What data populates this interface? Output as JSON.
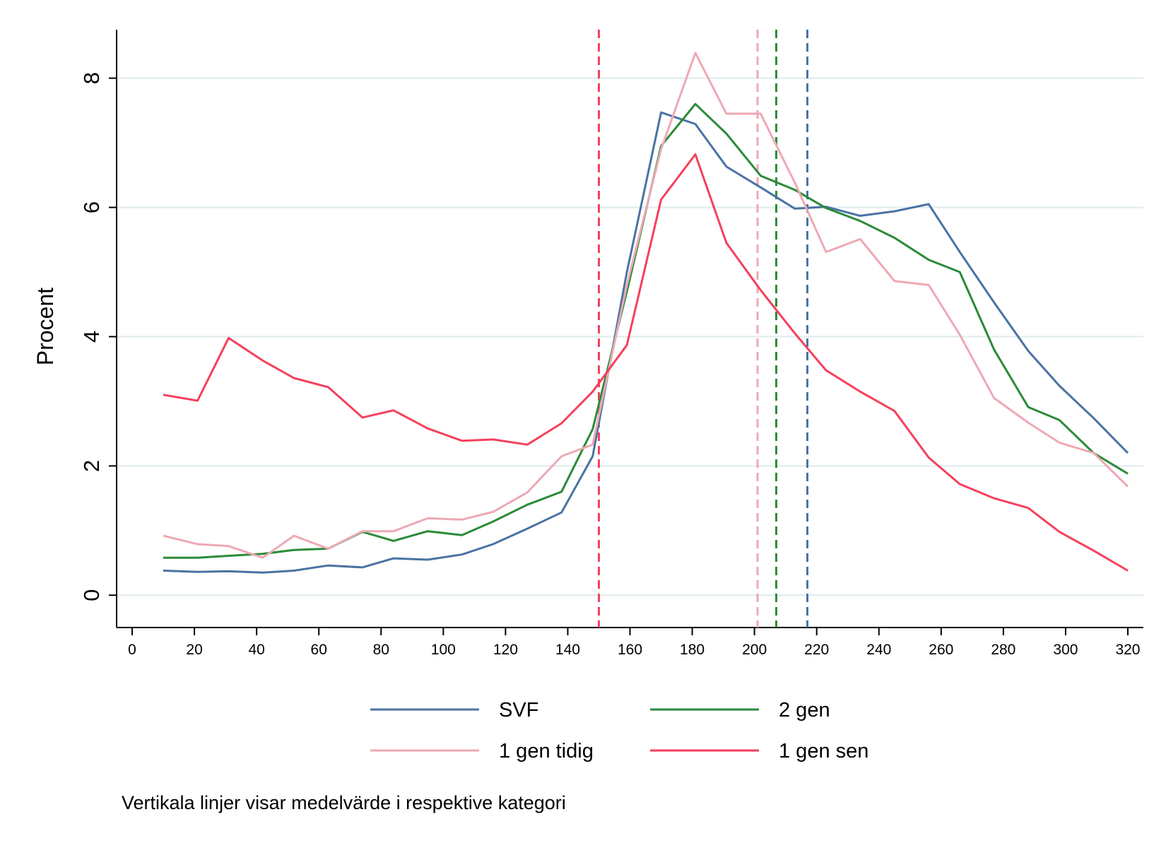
{
  "chart_data": {
    "type": "line",
    "ylabel": "Procent",
    "xlabel": "",
    "xlim": [
      -5,
      325
    ],
    "ylim": [
      -0.5,
      8.75
    ],
    "x_ticks": [
      0,
      20,
      40,
      60,
      80,
      100,
      120,
      140,
      160,
      180,
      200,
      220,
      240,
      260,
      280,
      300,
      320
    ],
    "x_tick_labels": [
      "0",
      "20",
      "40",
      "60",
      "80",
      "100",
      "120",
      "140",
      "160",
      "180",
      "200",
      "220",
      "240",
      "260",
      "280",
      "300",
      "320"
    ],
    "y_ticks": [
      0,
      2,
      4,
      6,
      8
    ],
    "y_tick_labels": [
      "0",
      "2",
      "4",
      "6",
      "8"
    ],
    "grid": "horizontal",
    "x": [
      10,
      21,
      31,
      42,
      52,
      63,
      74,
      84,
      95,
      106,
      116,
      127,
      138,
      148,
      159,
      170,
      181,
      191,
      202,
      213,
      223,
      234,
      245,
      256,
      266,
      277,
      288,
      298,
      309,
      320
    ],
    "series": [
      {
        "name": "SVF",
        "color": "#4a73a3",
        "values": [
          0.38,
          0.36,
          0.37,
          0.35,
          0.38,
          0.46,
          0.43,
          0.57,
          0.55,
          0.63,
          0.79,
          1.03,
          1.28,
          2.15,
          5.0,
          7.47,
          7.29,
          6.63,
          6.31,
          5.98,
          6.01,
          5.87,
          5.94,
          6.05,
          5.31,
          4.53,
          3.78,
          3.24,
          2.74,
          2.2
        ]
      },
      {
        "name": "2 gen",
        "color": "#2b8b38",
        "values": [
          0.58,
          0.58,
          0.61,
          0.64,
          0.7,
          0.72,
          0.98,
          0.84,
          0.99,
          0.93,
          1.14,
          1.4,
          1.6,
          2.57,
          4.7,
          6.95,
          7.6,
          7.14,
          6.49,
          6.27,
          5.99,
          5.79,
          5.53,
          5.19,
          5.0,
          3.8,
          2.91,
          2.71,
          2.2,
          1.88
        ]
      },
      {
        "name": "1 gen tidig",
        "color": "#eda9b4",
        "values": [
          0.92,
          0.79,
          0.76,
          0.58,
          0.92,
          0.72,
          0.99,
          0.99,
          1.19,
          1.17,
          1.29,
          1.59,
          2.15,
          2.33,
          4.8,
          6.9,
          8.39,
          7.45,
          7.45,
          6.38,
          5.31,
          5.51,
          4.86,
          4.8,
          4.03,
          3.05,
          2.67,
          2.36,
          2.2,
          1.68
        ]
      },
      {
        "name": "1 gen sen",
        "color": "#f5405c",
        "values": [
          3.1,
          3.01,
          3.98,
          3.63,
          3.36,
          3.22,
          2.75,
          2.86,
          2.58,
          2.39,
          2.41,
          2.33,
          2.66,
          3.15,
          3.87,
          6.12,
          6.82,
          5.45,
          4.72,
          4.05,
          3.48,
          3.15,
          2.85,
          2.13,
          1.72,
          1.5,
          1.35,
          0.98,
          0.69,
          0.38
        ]
      }
    ],
    "mean_lines": [
      {
        "name": "SVF",
        "color": "#4a73a3",
        "x": 217
      },
      {
        "name": "2 gen",
        "color": "#2b8b38",
        "x": 207
      },
      {
        "name": "1 gen tidig",
        "color": "#eda9b4",
        "x": 201
      },
      {
        "name": "1 gen sen",
        "color": "#f5405c",
        "x": 150
      }
    ],
    "legend": {
      "placement": "bottom",
      "items": [
        {
          "label": "SVF",
          "color": "#4a73a3"
        },
        {
          "label": "2 gen",
          "color": "#2b8b38"
        },
        {
          "label": "1 gen tidig",
          "color": "#eda9b4"
        },
        {
          "label": "1 gen sen",
          "color": "#f5405c"
        }
      ]
    },
    "note": "Vertikala linjer visar medelvärde i respektive kategori"
  }
}
